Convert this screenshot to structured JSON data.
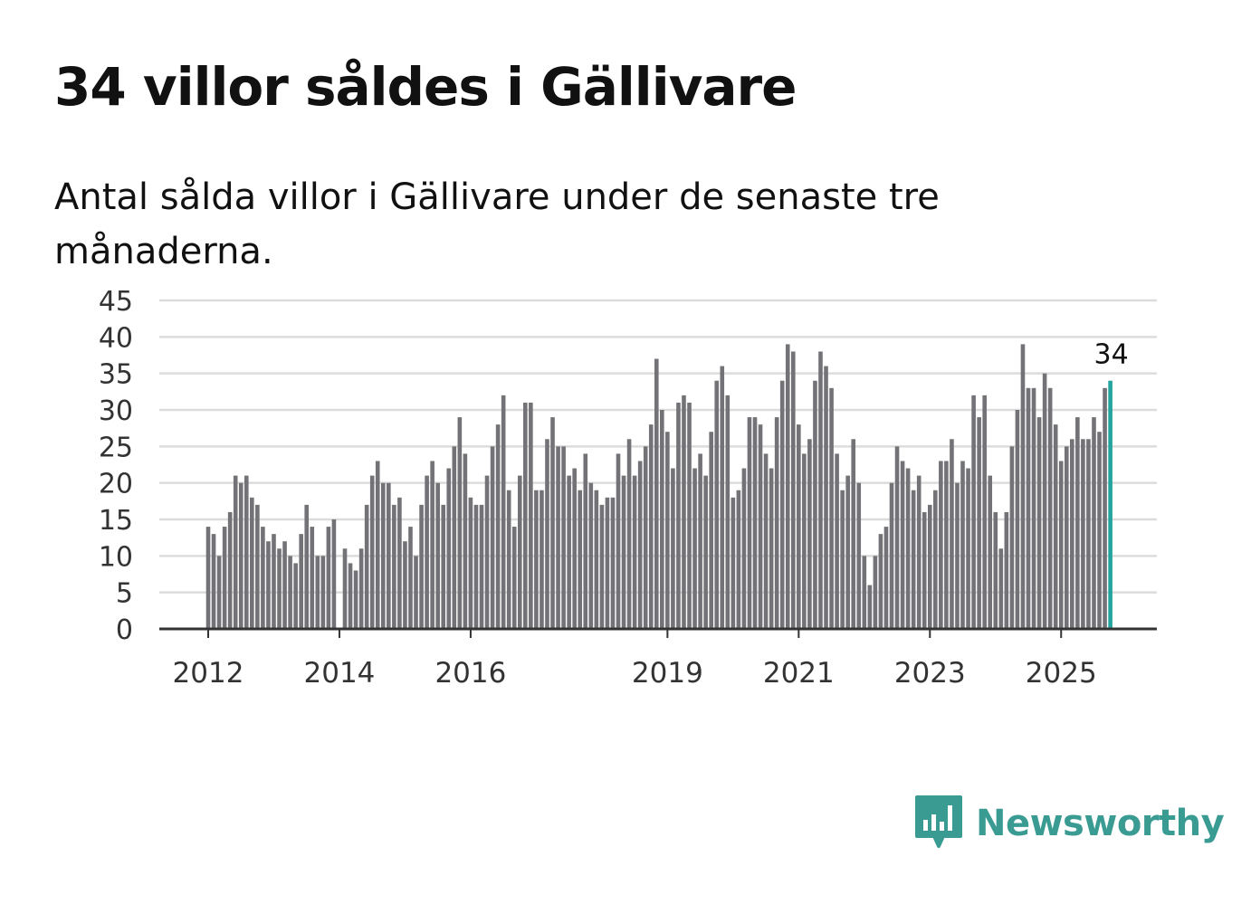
{
  "header": {
    "title": "34 villor såldes i Gällivare",
    "subtitle": "Antal sålda villor i Gällivare under de senaste tre månaderna."
  },
  "brand": {
    "name": "Newsworthy",
    "icon": "bar-chart-speech-bubble-icon",
    "color": "#3a9b93"
  },
  "chart_data": {
    "type": "bar",
    "title": "34 villor såldes i Gällivare",
    "subtitle": "Antal sålda villor i Gällivare under de senaste tre månaderna.",
    "xlabel": "",
    "ylabel": "",
    "ylim": [
      0,
      45
    ],
    "y_ticks": [
      0,
      5,
      10,
      15,
      20,
      25,
      30,
      35,
      40,
      45
    ],
    "grid": true,
    "x_start": "2012-01",
    "x_ticks": [
      {
        "label": "2012",
        "index": 0
      },
      {
        "label": "2014",
        "index": 24
      },
      {
        "label": "2016",
        "index": 48
      },
      {
        "label": "2019",
        "index": 84
      },
      {
        "label": "2021",
        "index": 108
      },
      {
        "label": "2023",
        "index": 132
      },
      {
        "label": "2025",
        "index": 156
      }
    ],
    "values": [
      14,
      13,
      10,
      14,
      16,
      21,
      20,
      21,
      18,
      17,
      14,
      12,
      13,
      11,
      12,
      10,
      9,
      13,
      17,
      14,
      10,
      10,
      14,
      15,
      null,
      11,
      9,
      8,
      11,
      17,
      21,
      23,
      20,
      20,
      17,
      18,
      12,
      14,
      10,
      17,
      21,
      23,
      20,
      17,
      22,
      25,
      29,
      24,
      18,
      17,
      17,
      21,
      25,
      28,
      32,
      19,
      14,
      21,
      31,
      31,
      19,
      19,
      26,
      29,
      25,
      25,
      21,
      22,
      19,
      24,
      20,
      19,
      17,
      18,
      18,
      24,
      21,
      26,
      21,
      23,
      25,
      28,
      37,
      30,
      27,
      22,
      31,
      32,
      31,
      22,
      24,
      21,
      27,
      34,
      36,
      32,
      18,
      19,
      22,
      29,
      29,
      28,
      24,
      22,
      29,
      34,
      39,
      38,
      28,
      24,
      26,
      34,
      38,
      36,
      33,
      24,
      19,
      21,
      26,
      20,
      10,
      6,
      10,
      13,
      14,
      20,
      25,
      23,
      22,
      19,
      21,
      16,
      17,
      19,
      23,
      23,
      26,
      20,
      23,
      22,
      32,
      29,
      32,
      21,
      16,
      11,
      16,
      25,
      30,
      39,
      33,
      33,
      29,
      35,
      33,
      28,
      23,
      25,
      26,
      29,
      26,
      26,
      29,
      27,
      33,
      34
    ],
    "highlight_index": 165,
    "bar_color": "#737277",
    "highlight_color": "#23a59e",
    "annotation": {
      "label": "34",
      "index": 165
    }
  }
}
